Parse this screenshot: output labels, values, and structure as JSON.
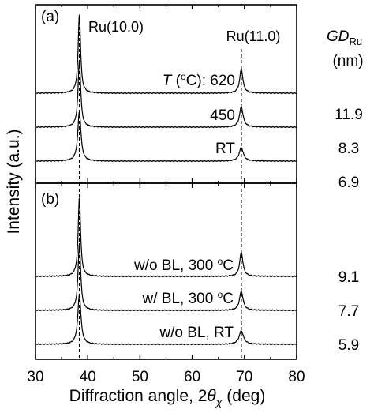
{
  "chart_data": [
    {
      "type": "line",
      "panel_label": "(a)",
      "xlim": [
        30,
        80
      ],
      "x_ticks": [
        "30",
        "40",
        "50",
        "60",
        "70",
        "80"
      ],
      "xlabel_main": "Diffraction angle, 2",
      "xlabel_theta": "θ",
      "xlabel_sub": "χ",
      "xlabel_unit": " (deg)",
      "ylabel": "Intensity (a.u.)",
      "grid": false,
      "reference_lines": [
        {
          "x": 38.4,
          "label": "Ru(10.0)"
        },
        {
          "x": 69.4,
          "label": "Ru(11.0)"
        }
      ],
      "gd_header": {
        "symbol": "GD",
        "sub": "Ru",
        "unit": "(nm)"
      },
      "series": [
        {
          "name": "620",
          "name_prefix_italic": "T",
          "name_prefix": " (",
          "name_sup": "o",
          "name_suffix": "C): ",
          "gd": "11.9",
          "peaks": [
            {
              "x": 38.4,
              "h": 1.0,
              "w": 0.28
            },
            {
              "x": 69.4,
              "h": 0.3,
              "w": 0.38
            }
          ]
        },
        {
          "name": "450",
          "gd": "8.3",
          "peaks": [
            {
              "x": 38.4,
              "h": 0.9,
              "w": 0.3
            },
            {
              "x": 69.4,
              "h": 0.27,
              "w": 0.42
            }
          ]
        },
        {
          "name": "RT",
          "gd": "6.9",
          "peaks": [
            {
              "x": 38.4,
              "h": 0.7,
              "w": 0.36
            },
            {
              "x": 69.4,
              "h": 0.19,
              "w": 0.48
            }
          ]
        }
      ]
    },
    {
      "type": "line",
      "panel_label": "(b)",
      "xlim": [
        30,
        80
      ],
      "series": [
        {
          "name": "w/o BL, 300 ",
          "name_sup": "o",
          "name_suffix": "C",
          "gd": "9.1",
          "peaks": [
            {
              "x": 38.4,
              "h": 1.0,
              "w": 0.28
            },
            {
              "x": 69.4,
              "h": 0.3,
              "w": 0.38
            }
          ]
        },
        {
          "name": "w/ BL, 300 ",
          "name_sup": "o",
          "name_suffix": "C",
          "gd": "7.7",
          "peaks": [
            {
              "x": 38.4,
              "h": 0.9,
              "w": 0.3
            },
            {
              "x": 69.4,
              "h": 0.25,
              "w": 0.42
            }
          ]
        },
        {
          "name": "w/o BL, RT",
          "gd": "5.9",
          "peaks": [
            {
              "x": 38.4,
              "h": 0.7,
              "w": 0.36
            },
            {
              "x": 69.4,
              "h": 0.19,
              "w": 0.5
            }
          ]
        }
      ]
    }
  ]
}
